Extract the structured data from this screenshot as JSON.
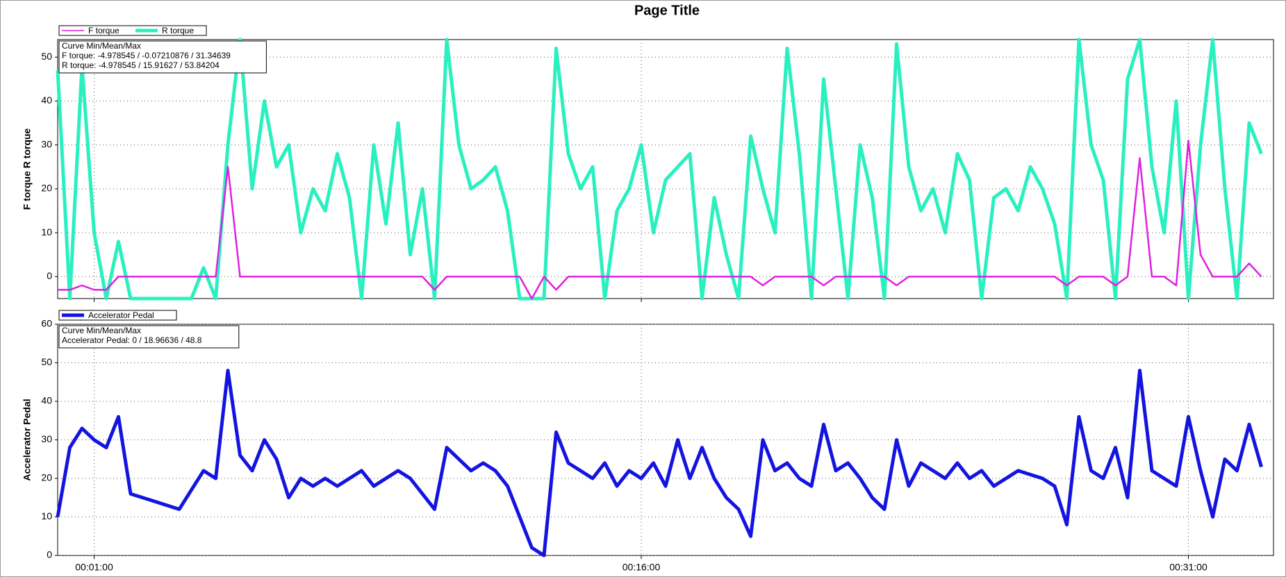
{
  "chart_data": [
    {
      "type": "line",
      "title": "Page Title",
      "ylabel": "F torque  R torque",
      "legend": "top-left",
      "grid": true,
      "annotation": [
        "Curve Min/Mean/Max",
        "F torque: -4.978545 / -0.07210876 / 31.34639",
        "R torque: -4.978545 / 15.91627 / 53.84204"
      ],
      "xlim": [
        0,
        2000
      ],
      "ylim": [
        -5,
        54
      ],
      "yticks": [
        0,
        10,
        20,
        30,
        40,
        50
      ],
      "x": [
        0,
        20,
        40,
        60,
        80,
        100,
        120,
        140,
        160,
        180,
        200,
        220,
        240,
        260,
        280,
        300,
        320,
        340,
        360,
        380,
        400,
        420,
        440,
        460,
        480,
        500,
        520,
        540,
        560,
        580,
        600,
        620,
        640,
        660,
        680,
        700,
        720,
        740,
        760,
        780,
        800,
        820,
        840,
        860,
        880,
        900,
        920,
        940,
        960,
        980,
        1000,
        1020,
        1040,
        1060,
        1080,
        1100,
        1120,
        1140,
        1160,
        1180,
        1200,
        1220,
        1240,
        1260,
        1280,
        1300,
        1320,
        1340,
        1360,
        1380,
        1400,
        1420,
        1440,
        1460,
        1480,
        1500,
        1520,
        1540,
        1560,
        1580,
        1600,
        1620,
        1640,
        1660,
        1680,
        1700,
        1720,
        1740,
        1760,
        1780,
        1800,
        1820,
        1840,
        1860,
        1880,
        1900,
        1920,
        1940,
        1960,
        1980
      ],
      "series": [
        {
          "name": "F torque",
          "color": "#e020e0",
          "values": [
            -3,
            -3,
            -2,
            -3,
            -3,
            0,
            0,
            0,
            0,
            0,
            0,
            0,
            0,
            0,
            25,
            0,
            0,
            0,
            0,
            0,
            0,
            0,
            0,
            0,
            0,
            0,
            0,
            0,
            0,
            0,
            0,
            -3,
            0,
            0,
            0,
            0,
            0,
            0,
            0,
            -5,
            0,
            -3,
            0,
            0,
            0,
            0,
            0,
            0,
            0,
            0,
            0,
            0,
            0,
            0,
            0,
            0,
            0,
            0,
            -2,
            0,
            0,
            0,
            0,
            -2,
            0,
            0,
            0,
            0,
            0,
            -2,
            0,
            0,
            0,
            0,
            0,
            0,
            0,
            0,
            0,
            0,
            0,
            0,
            0,
            -2,
            0,
            0,
            0,
            -2,
            0,
            27,
            0,
            0,
            -2,
            31,
            5,
            0,
            0,
            0,
            3,
            0
          ]
        },
        {
          "name": "R torque",
          "color": "#2af0c0",
          "values": [
            47,
            -5,
            48,
            10,
            -5,
            8,
            -5,
            -5,
            -5,
            -5,
            -5,
            -5,
            2,
            -5,
            30,
            54,
            20,
            40,
            25,
            30,
            10,
            20,
            15,
            28,
            18,
            -5,
            30,
            12,
            35,
            5,
            20,
            -5,
            54,
            30,
            20,
            22,
            25,
            15,
            -5,
            -5,
            -5,
            52,
            28,
            20,
            25,
            -5,
            15,
            20,
            30,
            10,
            22,
            25,
            28,
            -5,
            18,
            5,
            -5,
            32,
            20,
            10,
            52,
            28,
            -5,
            45,
            20,
            -5,
            30,
            18,
            -5,
            53,
            25,
            15,
            20,
            10,
            28,
            22,
            -5,
            18,
            20,
            15,
            25,
            20,
            12,
            -5,
            54,
            30,
            22,
            -5,
            45,
            54,
            25,
            10,
            40,
            -5,
            30,
            54,
            20,
            -5,
            35,
            28
          ]
        }
      ]
    },
    {
      "type": "line",
      "ylabel": "Accelerator Pedal",
      "legend": "top-left",
      "grid": true,
      "annotation": [
        "Curve Min/Mean/Max",
        "Accelerator Pedal: 0 / 18.96636 / 48.8"
      ],
      "xlim": [
        0,
        2000
      ],
      "ylim": [
        0,
        60
      ],
      "yticks": [
        0,
        10,
        20,
        30,
        40,
        50,
        60
      ],
      "xticks": [
        {
          "value": 60,
          "label": "00:01:00"
        },
        {
          "value": 960,
          "label": "00:16:00"
        },
        {
          "value": 1860,
          "label": "00:31:00"
        }
      ],
      "x": [
        0,
        20,
        40,
        60,
        80,
        100,
        120,
        140,
        160,
        180,
        200,
        220,
        240,
        260,
        280,
        300,
        320,
        340,
        360,
        380,
        400,
        420,
        440,
        460,
        480,
        500,
        520,
        540,
        560,
        580,
        600,
        620,
        640,
        660,
        680,
        700,
        720,
        740,
        760,
        780,
        800,
        820,
        840,
        860,
        880,
        900,
        920,
        940,
        960,
        980,
        1000,
        1020,
        1040,
        1060,
        1080,
        1100,
        1120,
        1140,
        1160,
        1180,
        1200,
        1220,
        1240,
        1260,
        1280,
        1300,
        1320,
        1340,
        1360,
        1380,
        1400,
        1420,
        1440,
        1460,
        1480,
        1500,
        1520,
        1540,
        1560,
        1580,
        1600,
        1620,
        1640,
        1660,
        1680,
        1700,
        1720,
        1740,
        1760,
        1780,
        1800,
        1820,
        1840,
        1860,
        1880,
        1900,
        1920,
        1940,
        1960,
        1980
      ],
      "series": [
        {
          "name": "Accelerator Pedal",
          "color": "#1414e0",
          "values": [
            10,
            28,
            33,
            30,
            28,
            36,
            16,
            15,
            14,
            13,
            12,
            17,
            22,
            20,
            48,
            26,
            22,
            30,
            25,
            15,
            20,
            18,
            20,
            18,
            20,
            22,
            18,
            20,
            22,
            20,
            16,
            12,
            28,
            25,
            22,
            24,
            22,
            18,
            10,
            2,
            0,
            32,
            24,
            22,
            20,
            24,
            18,
            22,
            20,
            24,
            18,
            30,
            20,
            28,
            20,
            15,
            12,
            5,
            30,
            22,
            24,
            20,
            18,
            34,
            22,
            24,
            20,
            15,
            12,
            30,
            18,
            24,
            22,
            20,
            24,
            20,
            22,
            18,
            20,
            22,
            21,
            20,
            18,
            8,
            36,
            22,
            20,
            28,
            15,
            48,
            22,
            20,
            18,
            36,
            22,
            10,
            25,
            22,
            34,
            23
          ]
        }
      ]
    }
  ]
}
